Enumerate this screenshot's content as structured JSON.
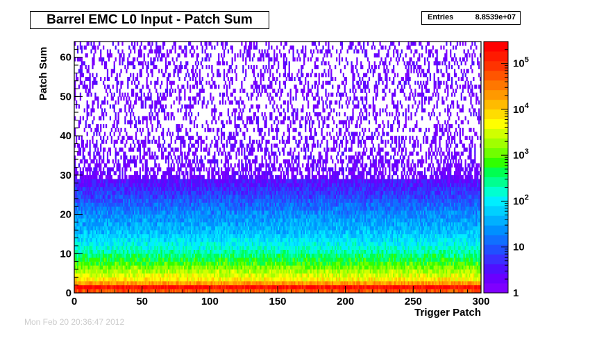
{
  "title": "Barrel EMC L0 Input - Patch Sum",
  "stats": {
    "label": "Entries",
    "value": "8.8539e+07"
  },
  "footer": "Mon Feb 20 20:36:47 2012",
  "chart_data": {
    "type": "heatmap",
    "title": "Barrel EMC L0 Input - Patch Sum",
    "xlabel": "Trigger Patch",
    "ylabel": "Patch Sum",
    "xlim": [
      0,
      300
    ],
    "ylim": [
      0,
      64
    ],
    "x_ticks": [
      "0",
      "50",
      "100",
      "150",
      "200",
      "250",
      "300"
    ],
    "y_ticks": [
      "0",
      "10",
      "20",
      "30",
      "40",
      "50",
      "60"
    ],
    "z_scale": "log",
    "z_range": [
      1,
      300000
    ],
    "z_ticks": [
      "1",
      "10",
      "10^2",
      "10^3",
      "10^4",
      "10^5"
    ],
    "profile": [
      {
        "y": 0,
        "count": 60000
      },
      {
        "y": 1,
        "count": 200000
      },
      {
        "y": 2,
        "count": 20000
      },
      {
        "y": 3,
        "count": 6000
      },
      {
        "y": 5,
        "count": 2000
      },
      {
        "y": 10,
        "count": 200
      },
      {
        "y": 15,
        "count": 50
      },
      {
        "y": 20,
        "count": 20
      },
      {
        "y": 25,
        "count": 6
      },
      {
        "y": 30,
        "count": 2
      },
      {
        "y": 40,
        "count": 1
      },
      {
        "y": 63,
        "count": 1
      }
    ],
    "colors": [
      "#7f00ff",
      "#6a00ff",
      "#4f10ff",
      "#3a30ff",
      "#2050ff",
      "#1070ff",
      "#0090ff",
      "#00b0ff",
      "#00d0ff",
      "#00eeff",
      "#00ffd0",
      "#00ff90",
      "#00ff50",
      "#30ff00",
      "#70ff00",
      "#a0ff00",
      "#d0ff00",
      "#ffff00",
      "#ffdd00",
      "#ffbb00",
      "#ff9900",
      "#ff7700",
      "#ff5500",
      "#ff3300",
      "#ff1a00",
      "#ff0000"
    ]
  }
}
